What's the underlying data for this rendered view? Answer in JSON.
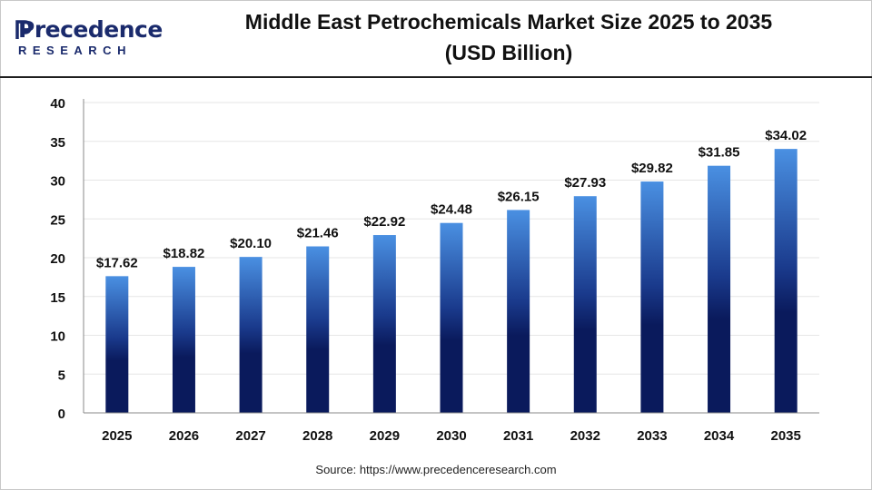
{
  "brand": {
    "logo_top": "Precedence",
    "logo_bottom": "RESEARCH",
    "logo_color": "#1a2a6c"
  },
  "header": {
    "title_line1": "Middle East Petrochemicals Market Size 2025 to 2035",
    "title_line2": "(USD Billion)"
  },
  "source": "Source: https://www.precedenceresearch.com",
  "chart_data": {
    "type": "bar",
    "title": "Middle East Petrochemicals Market Size 2025 to 2035 (USD Billion)",
    "xlabel": "",
    "ylabel": "",
    "categories": [
      "2025",
      "2026",
      "2027",
      "2028",
      "2029",
      "2030",
      "2031",
      "2032",
      "2033",
      "2034",
      "2035"
    ],
    "values": [
      17.62,
      18.82,
      20.1,
      21.46,
      22.92,
      24.48,
      26.15,
      27.93,
      29.82,
      31.85,
      34.02
    ],
    "data_labels": [
      "$17.62",
      "$18.82",
      "$20.10",
      "$21.46",
      "$22.92",
      "$24.48",
      "$26.15",
      "$27.93",
      "$29.82",
      "$31.85",
      "$34.02"
    ],
    "ylim": [
      0,
      40
    ],
    "yticks": [
      "0",
      "5",
      "10",
      "15",
      "20",
      "25",
      "30",
      "35",
      "40"
    ],
    "grid": true,
    "legend": "none",
    "colors": {
      "bar_top": "#4a90e2",
      "bar_bottom": "#0a1a5c",
      "grid": "#e6e6e6",
      "axis": "#888888"
    }
  }
}
